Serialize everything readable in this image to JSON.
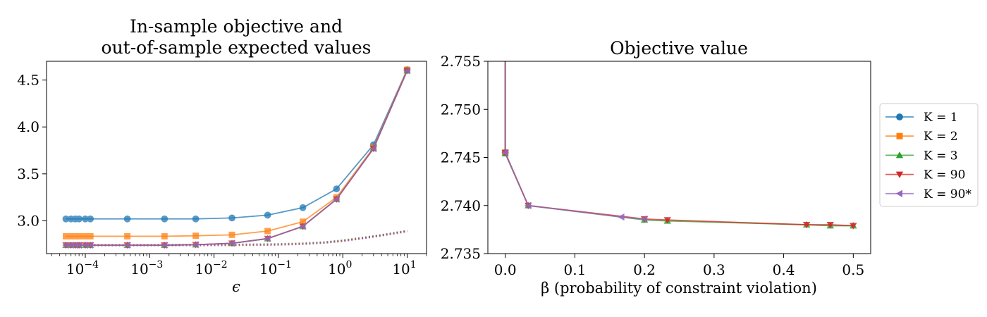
{
  "colors": {
    "K1": "#1f77b4",
    "K2": "#ff7f0e",
    "K3": "#2ca02c",
    "K90": "#d62728",
    "K90s": "#9467bd"
  },
  "chart_data": [
    {
      "type": "line",
      "title_lines": [
        "In-sample objective and",
        "out-of-sample expected values"
      ],
      "xlabel": "ϵ",
      "ylabel": "",
      "xscale": "log",
      "xlim": [
        2.5e-05,
        20
      ],
      "ylim": [
        2.65,
        4.7
      ],
      "x_ticks": [
        {
          "value": 0.0001,
          "label_base": "10",
          "label_exp": "−4"
        },
        {
          "value": 0.001,
          "label_base": "10",
          "label_exp": "−3"
        },
        {
          "value": 0.01,
          "label_base": "10",
          "label_exp": "−2"
        },
        {
          "value": 0.1,
          "label_base": "10",
          "label_exp": "−1"
        },
        {
          "value": 1,
          "label_base": "10",
          "label_exp": "0"
        },
        {
          "value": 10,
          "label_base": "10",
          "label_exp": "1"
        }
      ],
      "y_ticks": [
        {
          "value": 3.0,
          "label": "3.0"
        },
        {
          "value": 3.5,
          "label": "3.5"
        },
        {
          "value": 4.0,
          "label": "4.0"
        },
        {
          "value": 4.5,
          "label": "4.5"
        }
      ],
      "x": [
        5e-05,
        6e-05,
        7e-05,
        8e-05,
        0.0001,
        0.00012,
        0.00045,
        0.0017,
        0.0052,
        0.019,
        0.068,
        0.24,
        0.8,
        3.0,
        10.0
      ],
      "series": [
        {
          "key": "K1",
          "marker": "circle",
          "values": [
            3.02,
            3.02,
            3.02,
            3.02,
            3.02,
            3.02,
            3.02,
            3.02,
            3.02,
            3.03,
            3.06,
            3.14,
            3.34,
            3.81,
            4.61
          ]
        },
        {
          "key": "K2",
          "marker": "square",
          "values": [
            2.835,
            2.835,
            2.835,
            2.835,
            2.835,
            2.835,
            2.835,
            2.835,
            2.84,
            2.85,
            2.89,
            2.99,
            3.25,
            3.78,
            4.61
          ]
        },
        {
          "key": "K3",
          "marker": "triangle-up",
          "values": [
            2.74,
            2.74,
            2.74,
            2.74,
            2.74,
            2.74,
            2.74,
            2.74,
            2.745,
            2.76,
            2.81,
            2.94,
            3.23,
            3.77,
            4.6
          ]
        },
        {
          "key": "K90",
          "marker": "triangle-down",
          "values": [
            2.74,
            2.74,
            2.74,
            2.74,
            2.74,
            2.74,
            2.74,
            2.74,
            2.745,
            2.76,
            2.81,
            2.94,
            3.23,
            3.77,
            4.6
          ]
        },
        {
          "key": "K90s",
          "marker": "triangle-left",
          "values": [
            2.74,
            2.74,
            2.74,
            2.74,
            2.74,
            2.74,
            2.74,
            2.74,
            2.745,
            2.76,
            2.81,
            2.94,
            3.23,
            3.77,
            4.6
          ]
        }
      ],
      "out_of_sample_dotted": {
        "x": [
          5e-05,
          0.0001,
          0.001,
          0.01,
          0.05,
          0.1,
          0.24,
          0.5,
          1.0,
          2.0,
          4.0,
          10.0
        ],
        "values": [
          2.74,
          2.74,
          2.74,
          2.742,
          2.745,
          2.748,
          2.755,
          2.767,
          2.787,
          2.815,
          2.845,
          2.89
        ]
      }
    },
    {
      "type": "line",
      "title": "Objective value",
      "xlabel": "β (probability of constraint violation)",
      "ylabel": "",
      "xlim": [
        -0.025,
        0.525
      ],
      "ylim": [
        2.735,
        2.755
      ],
      "x_ticks": [
        {
          "value": 0.0,
          "label": "0.0"
        },
        {
          "value": 0.1,
          "label": "0.1"
        },
        {
          "value": 0.2,
          "label": "0.2"
        },
        {
          "value": 0.3,
          "label": "0.3"
        },
        {
          "value": 0.4,
          "label": "0.4"
        },
        {
          "value": 0.5,
          "label": "0.5"
        }
      ],
      "y_ticks": [
        {
          "value": 2.735,
          "label": "2.735"
        },
        {
          "value": 2.74,
          "label": "2.740"
        },
        {
          "value": 2.745,
          "label": "2.745"
        },
        {
          "value": 2.75,
          "label": "2.750"
        },
        {
          "value": 2.755,
          "label": "2.755"
        }
      ],
      "series": [
        {
          "key": "K1",
          "marker": "circle",
          "x": [
            0.0,
            0.0
          ],
          "values": [
            2.76,
            2.7455
          ]
        },
        {
          "key": "K2",
          "marker": "square",
          "x": [
            0.0,
            0.0
          ],
          "values": [
            2.76,
            2.7455
          ]
        },
        {
          "key": "K3",
          "marker": "triangle-up",
          "x": [
            0.0,
            0.0,
            0.033,
            0.2,
            0.233,
            0.433,
            0.467,
            0.5
          ],
          "values": [
            2.76,
            2.7454,
            2.74,
            2.7385,
            2.7384,
            2.738,
            2.7379,
            2.7379
          ]
        },
        {
          "key": "K90",
          "marker": "triangle-down",
          "x": [
            0.0,
            0.0,
            0.033,
            0.2,
            0.233,
            0.433,
            0.467,
            0.5
          ],
          "values": [
            2.76,
            2.7455,
            2.74,
            2.7386,
            2.7385,
            2.738,
            2.738,
            2.7379
          ]
        },
        {
          "key": "K90s",
          "marker": "triangle-left",
          "x": [
            0.0,
            0.0,
            0.033,
            0.167,
            0.2
          ],
          "values": [
            2.76,
            2.7455,
            2.74,
            2.7388,
            2.7386
          ]
        }
      ]
    }
  ],
  "legend": {
    "placement": "right",
    "entries": [
      {
        "key": "K1",
        "marker": "circle",
        "label": "K = 1"
      },
      {
        "key": "K2",
        "marker": "square",
        "label": "K = 2"
      },
      {
        "key": "K3",
        "marker": "triangle-up",
        "label": "K = 3"
      },
      {
        "key": "K90",
        "marker": "triangle-down",
        "label": "K = 90"
      },
      {
        "key": "K90s",
        "marker": "triangle-left",
        "label": "K = 90*"
      }
    ]
  }
}
